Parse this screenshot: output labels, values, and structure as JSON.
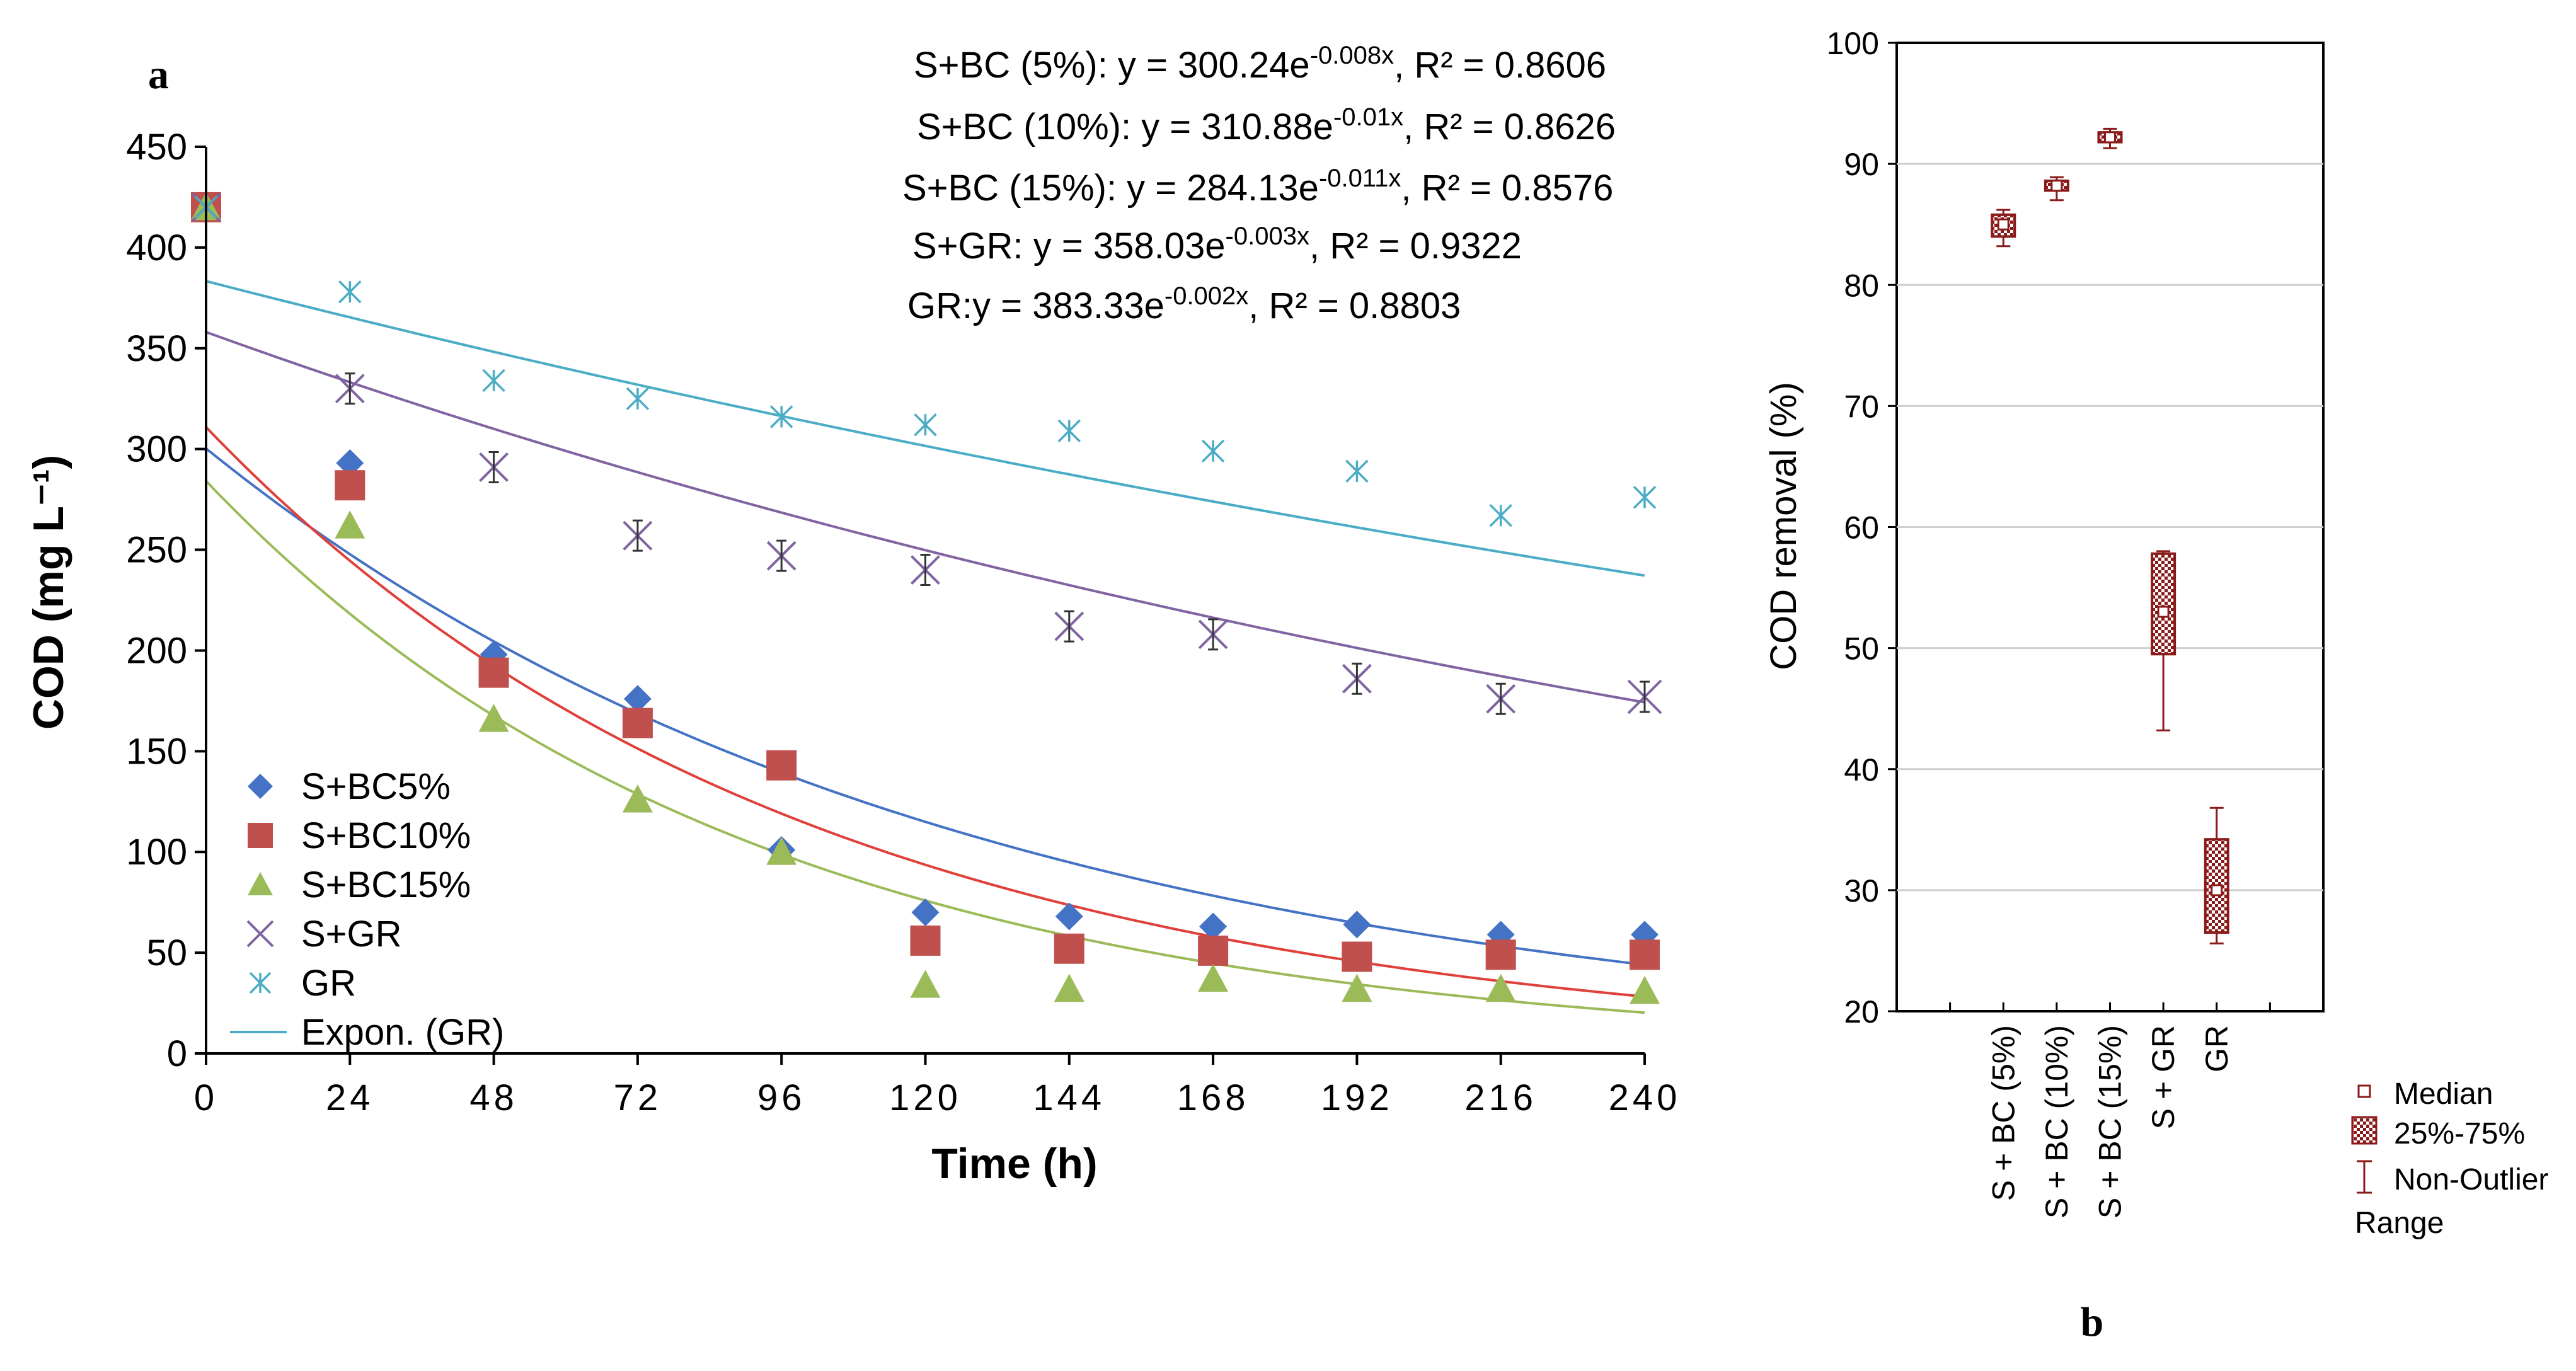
{
  "chart_data": [
    {
      "id": "a",
      "type": "scatter",
      "panel_label": "a",
      "xlabel": "Time (h)",
      "ylabel": "COD (mg L⁻¹)",
      "xlim": [
        0,
        240
      ],
      "ylim": [
        0,
        450
      ],
      "xticks": [
        0,
        24,
        48,
        72,
        96,
        120,
        144,
        168,
        192,
        216,
        240
      ],
      "yticks": [
        0,
        50,
        100,
        150,
        200,
        250,
        300,
        350,
        400,
        450
      ],
      "x": [
        0,
        24,
        48,
        72,
        96,
        120,
        144,
        168,
        192,
        216,
        240
      ],
      "series": [
        {
          "name": "S+BC5%",
          "marker": "diamond",
          "color": "#4472c4",
          "fit_color": "#4472c4",
          "values": [
            420,
            293,
            198,
            176,
            101,
            70,
            68,
            63,
            64,
            59,
            59
          ],
          "fit": {
            "a": 300.24,
            "b": -0.008
          }
        },
        {
          "name": "S+BC10%",
          "marker": "square",
          "color": "#c0504d",
          "fit_color": "#e0403a",
          "values": [
            420,
            282,
            189,
            164,
            143,
            56,
            52,
            51,
            48,
            49,
            49
          ],
          "fit": {
            "a": 310.88,
            "b": -0.01
          }
        },
        {
          "name": "S+BC15%",
          "marker": "triangle",
          "color": "#9bbb59",
          "fit_color": "#9bbb59",
          "values": [
            420,
            262,
            166,
            126,
            100,
            34,
            32,
            37,
            32,
            32,
            31
          ],
          "fit": {
            "a": 284.13,
            "b": -0.011
          }
        },
        {
          "name": "S+GR",
          "marker": "x",
          "color": "#8064a2",
          "fit_color": "#8064a2",
          "values": [
            420,
            330,
            291,
            257,
            247,
            240,
            212,
            208,
            186,
            176,
            177
          ],
          "fit": {
            "a": 358.03,
            "b": -0.003
          }
        },
        {
          "name": "GR",
          "marker": "asterisk",
          "color": "#4bacc6",
          "fit_color": "#4bacc6",
          "values": [
            420,
            378,
            334,
            325,
            316,
            312,
            309,
            299,
            289,
            267,
            276
          ],
          "fit": {
            "a": 383.33,
            "b": -0.002
          }
        }
      ],
      "legend": {
        "placement": "bottom-left",
        "items": [
          "S+BC5%",
          "S+BC10%",
          "S+BC15%",
          "S+GR",
          "GR",
          "Expon. (GR)"
        ]
      },
      "equations": [
        {
          "pre": "S+BC (5%): y = 300.24e",
          "sup": "-0.008x",
          "post": ", R² = 0.8606"
        },
        {
          "pre": "S+BC (10%): y = 310.88e",
          "sup": "-0.01x",
          "post": ", R² = 0.8626"
        },
        {
          "pre": "S+BC (15%): y = 284.13e",
          "sup": "-0.011x",
          "post": ", R² = 0.8576"
        },
        {
          "pre": "S+GR: y = 358.03e",
          "sup": "-0.003x",
          "post": ", R² = 0.9322"
        },
        {
          "pre": "GR:y = 383.33e",
          "sup": "-0.002x",
          "post": ", R² = 0.8803"
        }
      ]
    },
    {
      "id": "b",
      "type": "box",
      "panel_label": "b",
      "ylabel": "COD removal (%)",
      "ylim": [
        20,
        100
      ],
      "yticks": [
        20,
        30,
        40,
        50,
        60,
        70,
        80,
        90,
        100
      ],
      "grid": true,
      "color": "#8b1a1a",
      "categories": [
        "S + BC (5%)",
        "S + BC (10%)",
        "S + BC (15%)",
        "S + GR",
        "GR"
      ],
      "boxes": [
        {
          "category": "S + BC (5%)",
          "median": 85.0,
          "q1": 84.0,
          "q3": 85.8,
          "min": 83.2,
          "max": 86.2
        },
        {
          "category": "S + BC (10%)",
          "median": 88.2,
          "q1": 87.8,
          "q3": 88.6,
          "min": 87.0,
          "max": 88.9
        },
        {
          "category": "S + BC (15%)",
          "median": 92.2,
          "q1": 91.8,
          "q3": 92.6,
          "min": 91.3,
          "max": 92.9
        },
        {
          "category": "S + GR",
          "median": 53.0,
          "q1": 49.5,
          "q3": 57.8,
          "min": 43.2,
          "max": 58.0
        },
        {
          "category": "GR",
          "median": 30.0,
          "q1": 26.5,
          "q3": 34.2,
          "min": 25.6,
          "max": 36.8
        }
      ],
      "legend": {
        "placement": "bottom-right",
        "items": [
          "Median",
          "25%-75%",
          "Non-Outlier",
          "Range"
        ]
      }
    }
  ]
}
